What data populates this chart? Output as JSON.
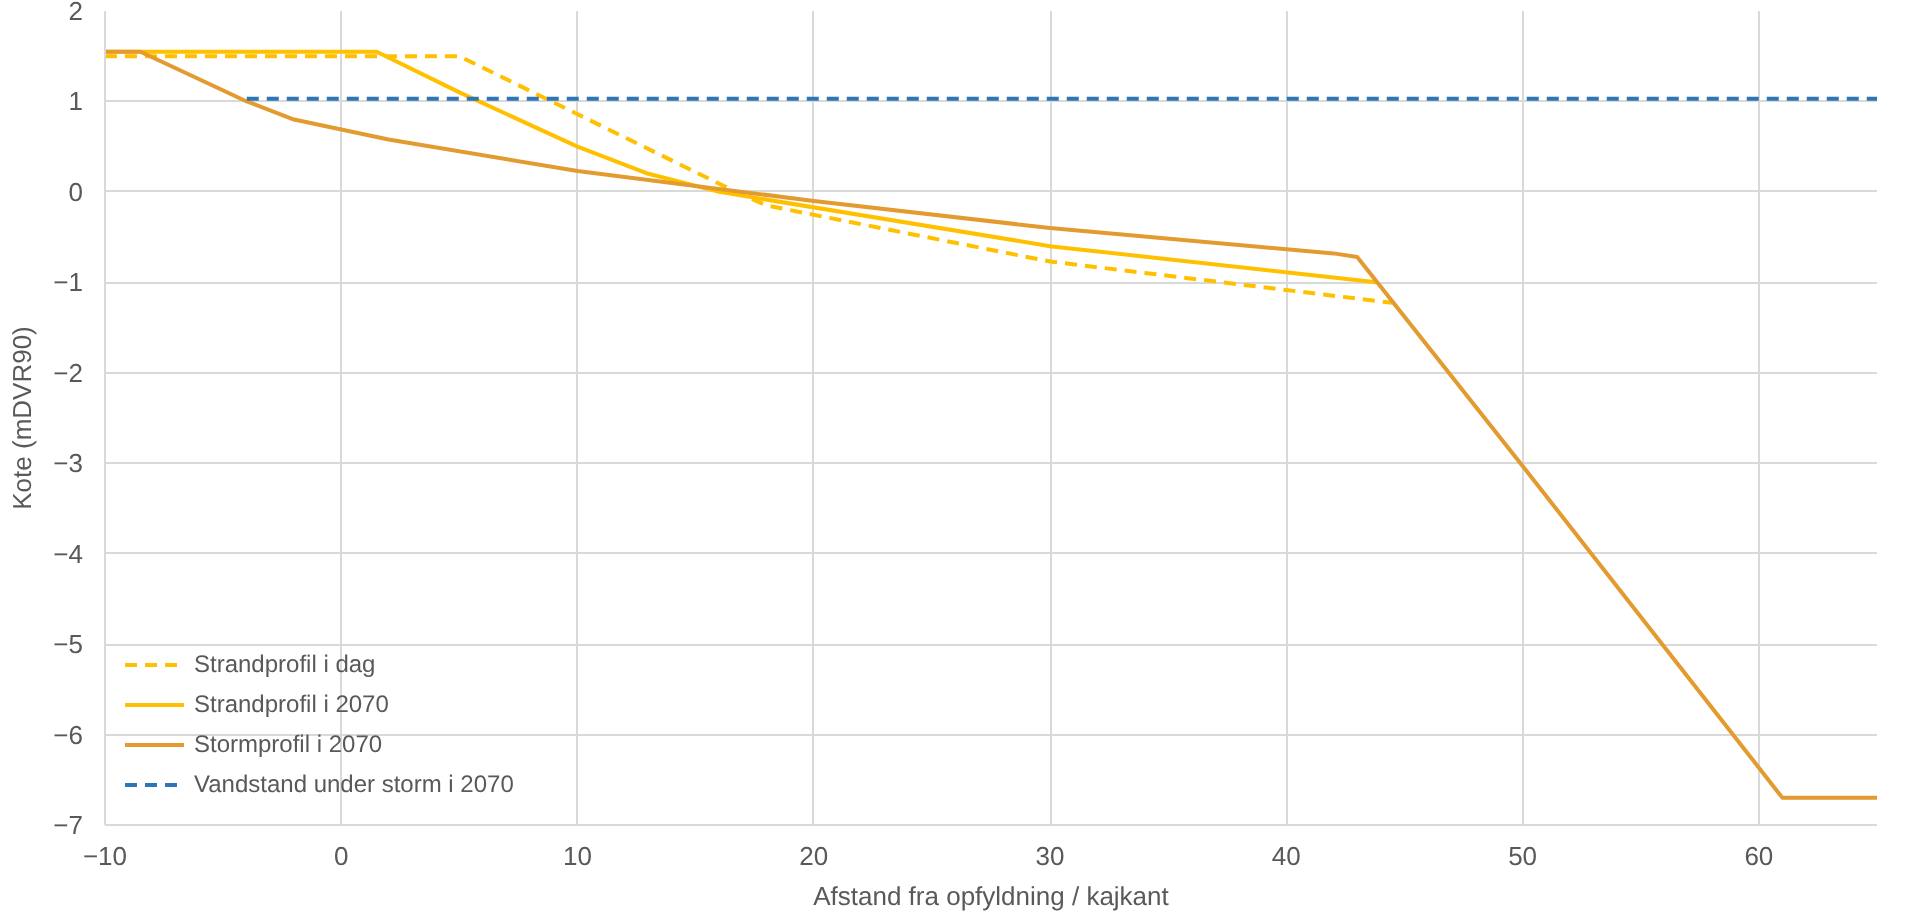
{
  "chart_data": {
    "type": "line",
    "xlabel": "Afstand fra opfyldning / kajkant",
    "ylabel": "Kote (mDVR90)",
    "xlim": [
      -10,
      65
    ],
    "xticks": [
      -10,
      0,
      10,
      20,
      30,
      40,
      50,
      60
    ],
    "ylim": [
      -7,
      2
    ],
    "yticks": [
      -7,
      -6,
      -5,
      -4,
      -3,
      -2,
      -1,
      0,
      1,
      2
    ],
    "grid": true,
    "legend": "bottom left",
    "marker": "none",
    "series": [
      {
        "name": "Strandprofil i dag",
        "color": "#ffc000",
        "line_style": "dashed",
        "x": [
          -10,
          5,
          16.7,
          18,
          30,
          44.6
        ],
        "values": [
          1.5,
          1.5,
          0,
          -0.15,
          -0.77,
          -1.23
        ]
      },
      {
        "name": "Strandprofil i 2070",
        "color": "#ffc000",
        "line_style": "solid",
        "x": [
          -10,
          1.5,
          5,
          10,
          13,
          16,
          30,
          43.8
        ],
        "values": [
          1.55,
          1.55,
          1.1,
          0.5,
          0.2,
          0,
          -0.6,
          -1.0
        ]
      },
      {
        "name": "Stormprofil i 2070",
        "color": "#e39a2e",
        "line_style": "solid",
        "x": [
          -10,
          -8.5,
          -4,
          -2,
          2,
          10,
          20,
          30,
          42,
          43,
          50,
          61,
          65
        ],
        "values": [
          1.55,
          1.55,
          1.0,
          0.8,
          0.58,
          0.23,
          -0.1,
          -0.4,
          -0.68,
          -0.72,
          -3.03,
          -6.7,
          -6.7
        ]
      },
      {
        "name": "Vandstand under storm i 2070",
        "color": "#2e75b6",
        "line_style": "dashed",
        "x": [
          -4,
          65
        ],
        "values": [
          1.03,
          1.03
        ]
      }
    ]
  }
}
